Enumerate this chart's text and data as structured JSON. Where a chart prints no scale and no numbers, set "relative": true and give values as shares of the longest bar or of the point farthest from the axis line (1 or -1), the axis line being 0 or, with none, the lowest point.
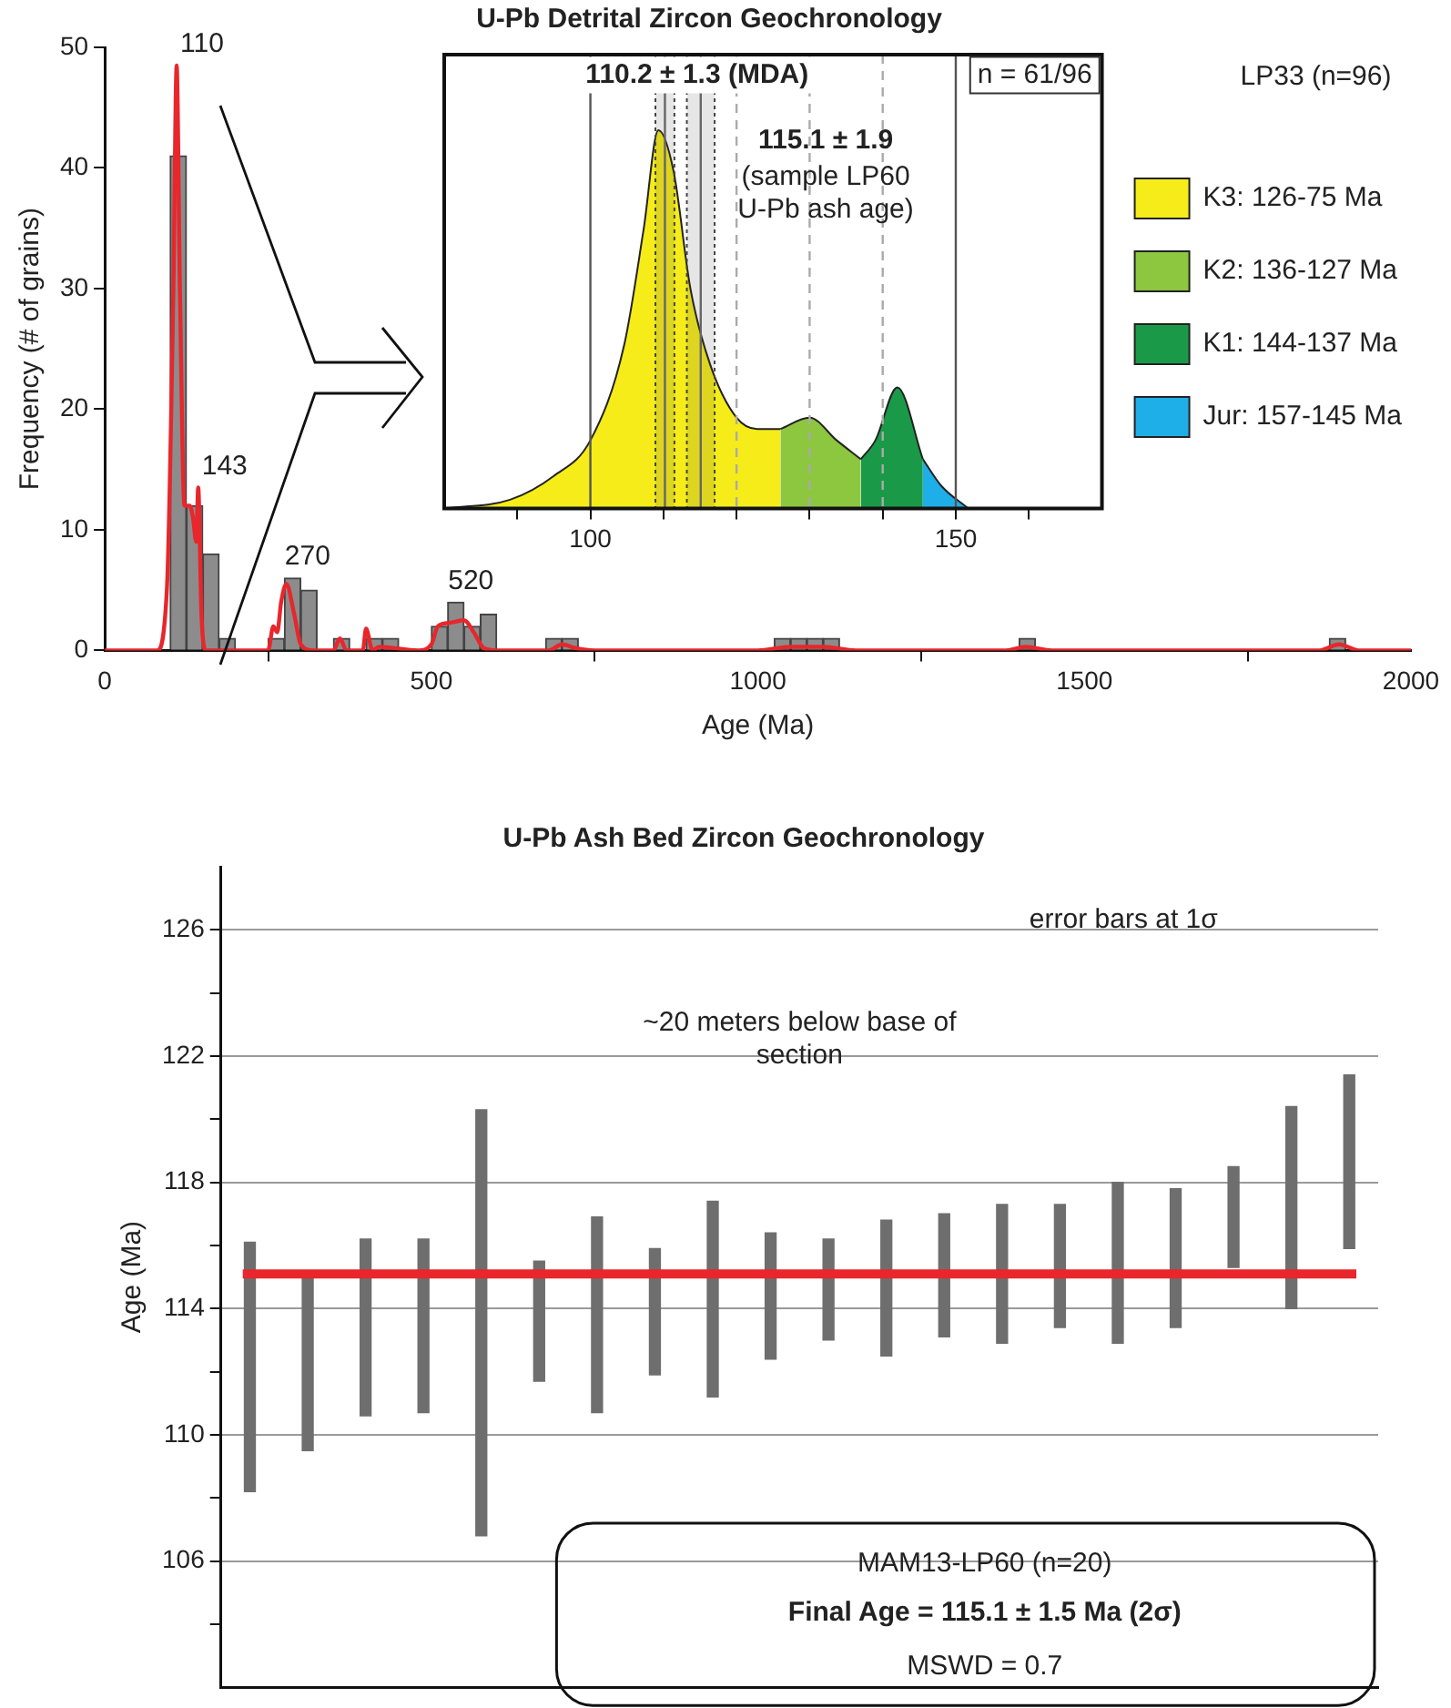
{
  "chart_data": [
    {
      "type": "histogram",
      "title": "U-Pb Detrital Zircon Geochronology",
      "xlabel": "Age (Ma)",
      "ylabel": "Frequency (# of grains)",
      "xlim": [
        0,
        2000
      ],
      "xticks": [
        0,
        500,
        1000,
        1500,
        2000
      ],
      "ylim": [
        0,
        50
      ],
      "yticks": [
        0,
        10,
        20,
        30,
        40,
        50
      ],
      "series": [
        {
          "type": "histogram",
          "color": "#8c8c8c",
          "bins": [
            100,
            125,
            150,
            175,
            200,
            225,
            250,
            275,
            300,
            325,
            350,
            375,
            400,
            425,
            450,
            475,
            500,
            525,
            550,
            575,
            600,
            625,
            650,
            675,
            700,
            725,
            750,
            775,
            800,
            825,
            850,
            875,
            900,
            925,
            950,
            975,
            1000,
            1025,
            1050,
            1075,
            1100,
            1125,
            1150,
            1175,
            1200,
            1225,
            1250,
            1275,
            1300,
            1325,
            1350,
            1375,
            1400,
            1425,
            1450,
            1475,
            1500,
            1525,
            1550,
            1575,
            1600,
            1625,
            1650,
            1675,
            1700,
            1725,
            1750,
            1775,
            1800,
            1825,
            1850,
            1875,
            1900
          ],
          "values": [
            41,
            12,
            8,
            1,
            0,
            0,
            1,
            6,
            5,
            0,
            1,
            0,
            1,
            1,
            0,
            0,
            2,
            4,
            2,
            3,
            0,
            0,
            0,
            1,
            1,
            0,
            0,
            0,
            0,
            0,
            0,
            0,
            0,
            0,
            0,
            0,
            0,
            1,
            1,
            1,
            1,
            0,
            0,
            0,
            0,
            0,
            0,
            0,
            0,
            0,
            0,
            0,
            1,
            0,
            0,
            0,
            0,
            0,
            0,
            0,
            0,
            0,
            0,
            0,
            0,
            0,
            0,
            0,
            0,
            0,
            0,
            1
          ]
        },
        {
          "type": "line",
          "color": "#e8262b",
          "x": [
            0,
            80,
            95,
            105,
            110,
            115,
            122,
            130,
            135,
            140,
            143,
            148,
            155,
            250,
            258,
            264,
            270,
            278,
            290,
            300,
            320,
            350,
            360,
            370,
            395,
            400,
            410,
            420,
            480,
            500,
            510,
            530,
            550,
            565,
            580,
            600,
            680,
            700,
            720,
            750,
            1000,
            1050,
            1100,
            1150,
            1380,
            1410,
            1450,
            1860,
            1890,
            1920,
            2000
          ],
          "values": [
            0,
            0,
            5,
            30,
            48.5,
            30,
            12,
            12,
            11,
            9,
            13.5,
            3,
            0,
            0,
            2,
            1.5,
            4,
            5.5,
            3,
            0.5,
            0,
            0,
            1,
            0,
            0,
            1.8,
            0,
            0.3,
            0,
            0.5,
            2,
            2.3,
            2.5,
            1.5,
            0.2,
            0,
            0,
            0.5,
            0.2,
            0,
            0,
            0.3,
            0.3,
            0,
            0,
            0.3,
            0,
            0,
            0.5,
            0,
            0
          ]
        }
      ],
      "annotations": [
        {
          "text": "110",
          "x": 110,
          "y": 48.5
        },
        {
          "text": "143",
          "x": 143,
          "y": 13.5
        },
        {
          "text": "270",
          "x": 270,
          "y": 6
        },
        {
          "text": "520",
          "x": 520,
          "y": 4
        },
        "LP33 (n=96)"
      ]
    },
    {
      "type": "area",
      "relative": true,
      "legend": "right",
      "xlim": [
        80,
        170
      ],
      "xticks": [
        {
          "value": 90,
          "label": null
        },
        100,
        {
          "value": 110,
          "label": null
        },
        {
          "value": 120,
          "label": null
        },
        {
          "value": 130,
          "label": null
        },
        {
          "value": 140,
          "label": null
        },
        150,
        {
          "value": 160,
          "label": null
        }
      ],
      "series": [
        {
          "name": "K3: 126-75 Ma",
          "color": "#f5ec1a",
          "x": [
            80,
            89,
            95,
            100,
            104.6,
            107.3,
            109.3,
            111.4,
            113.7,
            116.4,
            120,
            122.8,
            126
          ],
          "values": [
            0,
            0.023,
            0.086,
            0.18,
            0.43,
            0.74,
            1,
            0.89,
            0.58,
            0.38,
            0.24,
            0.21,
            0.21
          ]
        },
        {
          "name": "K2: 136-127 Ma",
          "color": "#8dc63f",
          "x": [
            126,
            130,
            133.7,
            137
          ],
          "values": [
            0.21,
            0.24,
            0.18,
            0.13
          ]
        },
        {
          "name": "K1: 144-137 Ma",
          "color": "#1a9a48",
          "x": [
            137,
            139,
            142,
            145.5
          ],
          "values": [
            0.13,
            0.18,
            0.32,
            0.13
          ]
        },
        {
          "name": "Jur: 157-145 Ma",
          "color": "#1eaee8",
          "x": [
            145.5,
            148,
            151.7
          ],
          "values": [
            0.13,
            0.06,
            0
          ]
        }
      ],
      "ref_lines": [
        {
          "axis": "x",
          "value": 100,
          "color": "#555555"
        },
        {
          "axis": "x",
          "value": 150,
          "color": "#555555"
        },
        {
          "axis": "x",
          "value": 120,
          "color": "#aaaaaa",
          "line_style": "dashed"
        },
        {
          "axis": "x",
          "value": 130,
          "color": "#aaaaaa",
          "line_style": "dashed"
        },
        {
          "axis": "x",
          "value": 140,
          "color": "#aaaaaa",
          "line_style": "dashed"
        },
        {
          "axis": "x",
          "value": 110.2,
          "color": "#666666"
        },
        {
          "axis": "x",
          "value": 115.1,
          "color": "#666666"
        }
      ],
      "bands": [
        {
          "axis": "x",
          "from": 108.9,
          "to": 111.5,
          "color": "#444444"
        },
        {
          "axis": "x",
          "from": 113.2,
          "to": 117,
          "color": "#444444"
        }
      ],
      "annotations": [
        "110.2 ± 1.3 (MDA)",
        "115.1 ± 1.9",
        "(sample LP60 U-Pb ash age)",
        "n = 61/96"
      ]
    },
    {
      "type": "bar",
      "title": "U-Pb Ash Bed Zircon Geochronology",
      "ylabel": "Age (Ma)",
      "categories": [
        null,
        null,
        null,
        null,
        null,
        null,
        null,
        null,
        null,
        null,
        null,
        null,
        null,
        null,
        null,
        null,
        null,
        null,
        null,
        null
      ],
      "color": "#6e6e6e",
      "grid": "y",
      "tick_labels": "y",
      "base": [
        108.2,
        109.5,
        110.6,
        110.7,
        106.8,
        111.7,
        110.7,
        111.9,
        111.2,
        112.4,
        113.0,
        112.5,
        113.1,
        112.9,
        113.4,
        112.9,
        113.4,
        115.3,
        114.0,
        115.9
      ],
      "values": [
        7.9,
        5.6,
        5.6,
        5.5,
        13.5,
        3.8,
        6.2,
        4.0,
        6.2,
        4.0,
        3.2,
        4.3,
        3.9,
        4.4,
        3.9,
        5.1,
        4.4,
        3.2,
        6.4,
        5.5
      ],
      "ylim": [
        102,
        128
      ],
      "yticks": [
        {
          "value": 104,
          "label": null
        },
        106,
        {
          "value": 108,
          "label": null
        },
        110,
        {
          "value": 112,
          "label": null
        },
        114,
        {
          "value": 116,
          "label": null
        },
        118,
        {
          "value": 120,
          "label": null
        },
        122,
        {
          "value": 124,
          "label": null
        },
        126
      ],
      "ref_lines": [
        {
          "axis": "y",
          "value": 115.1,
          "color": "#e8262b"
        }
      ],
      "annotations": [
        "error bars at 1σ",
        "~20 meters below base of section",
        "MAM13-LP60 (n=20)",
        "Final Age = 115.1 ± 1.5 Ma (2σ)",
        "MSWD = 0.7"
      ]
    }
  ]
}
